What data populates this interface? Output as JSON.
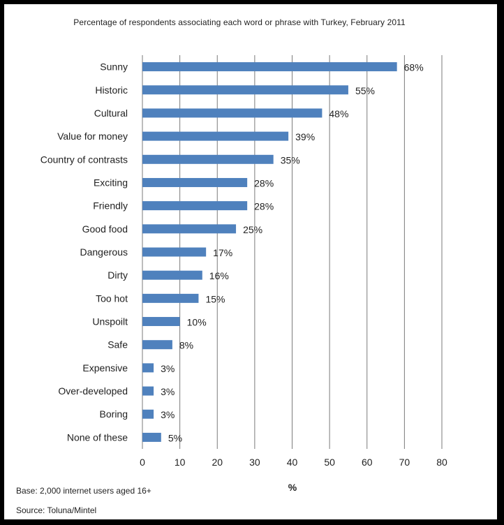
{
  "chart_data": {
    "type": "bar",
    "orientation": "horizontal",
    "title": "Percentage of respondents associating each word or phrase with Turkey, February 2011",
    "categories": [
      "Sunny",
      "Historic",
      "Cultural",
      "Value for money",
      "Country of contrasts",
      "Exciting",
      "Friendly",
      "Good food",
      "Dangerous",
      "Dirty",
      "Too hot",
      "Unspoilt",
      "Safe",
      "Expensive",
      "Over-developed",
      "Boring",
      "None of these"
    ],
    "values": [
      68,
      55,
      48,
      39,
      35,
      28,
      28,
      25,
      17,
      16,
      15,
      10,
      8,
      3,
      3,
      3,
      5
    ],
    "value_labels": [
      "68%",
      "55%",
      "48%",
      "39%",
      "35%",
      "28%",
      "28%",
      "25%",
      "17%",
      "16%",
      "15%",
      "10%",
      "8%",
      "3%",
      "3%",
      "3%",
      "5%"
    ],
    "xlim": [
      0,
      80
    ],
    "xticks": [
      "0",
      "10",
      "20",
      "30",
      "40",
      "50",
      "60",
      "70",
      "80"
    ],
    "xlabel": "%",
    "ylabel": "",
    "grid": "vertical",
    "legend": "none",
    "bar_color": "#4f81bd"
  },
  "notes": {
    "base": "Base: 2,000 internet users aged 16+",
    "source": "Source: Toluna/Mintel"
  }
}
